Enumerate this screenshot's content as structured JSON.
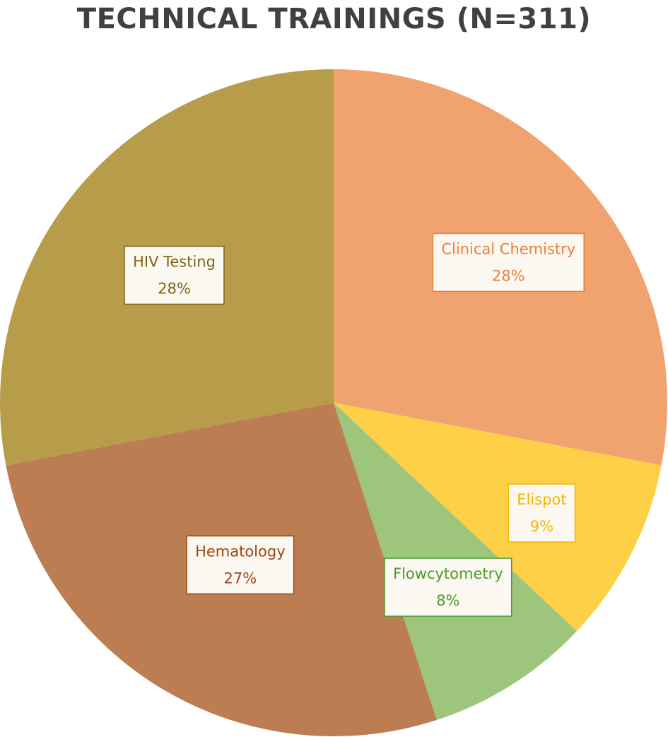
{
  "chart_data": {
    "type": "pie",
    "title": "TECHNICAL TRAININGS (N=311)",
    "categories": [
      "Clinical Chemistry",
      "Elispot",
      "Flowcytometry",
      "Hematology",
      "HIV Testing"
    ],
    "values": [
      28,
      9,
      8,
      27,
      28
    ],
    "value_labels": [
      "28%",
      "9%",
      "8%",
      "27%",
      "28%"
    ],
    "colors": [
      "#f0a36e",
      "#fdd048",
      "#9dc57c",
      "#bc7d53",
      "#b79c4a"
    ],
    "label_colors": [
      "#ea7f3d",
      "#f5b400",
      "#4e9b2b",
      "#9c4713",
      "#7c6618"
    ],
    "start_angle_deg": 0,
    "direction": "clockwise",
    "legend": "none"
  }
}
